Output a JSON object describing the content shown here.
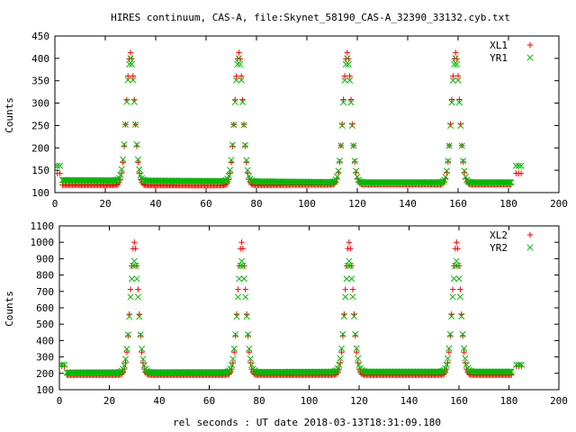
{
  "title": "HIRES continuum, CAS-A, file:Skynet_58190_CAS-A_32390_33132.cyb.txt",
  "xlabel": "rel seconds : UT date 2018-03-13T18:31:09.180",
  "colors": {
    "xl": "#ff0000",
    "yr": "#00bb00",
    "axis": "#000000"
  },
  "chart_data": [
    {
      "type": "scatter",
      "ylabel": "Counts",
      "xlim": [
        0,
        200
      ],
      "ylim": [
        100,
        450
      ],
      "xticks": [
        0,
        20,
        40,
        60,
        80,
        100,
        120,
        140,
        160,
        180,
        200
      ],
      "yticks": [
        100,
        150,
        200,
        250,
        300,
        350,
        400,
        450
      ],
      "legend_position": "top-right",
      "series": [
        {
          "name": "XL1",
          "marker": "plus",
          "color": "#ff0000",
          "cal_points": [
            [
              0,
              143
            ],
            [
              1,
              143
            ],
            [
              2,
              143
            ],
            [
              183,
              143
            ],
            [
              184,
              143
            ],
            [
              185,
              143
            ]
          ],
          "baseline": [
            [
              3,
              117
            ],
            [
              60,
              116
            ],
            [
              120,
              118
            ],
            [
              181,
              118
            ],
            [
              188,
              118
            ]
          ],
          "peaks": [
            [
              30,
              413,
              1.6
            ],
            [
              73,
              413,
              1.6
            ],
            [
              116,
              413,
              1.6
            ],
            [
              159,
              413,
              1.6
            ]
          ],
          "range": [
            3,
            181
          ],
          "step": 0.5
        },
        {
          "name": "YR1",
          "marker": "cross",
          "color": "#00bb00",
          "cal_points": [
            [
              0,
              160
            ],
            [
              1,
              160
            ],
            [
              2,
              160
            ],
            [
              183,
              160
            ],
            [
              184,
              160
            ],
            [
              185,
              160
            ]
          ],
          "baseline": [
            [
              3,
              128
            ],
            [
              60,
              126
            ],
            [
              120,
              123
            ],
            [
              181,
              123
            ],
            [
              188,
              123
            ]
          ],
          "peaks": [
            [
              30,
              400,
              1.6
            ],
            [
              73,
              400,
              1.6
            ],
            [
              116,
              400,
              1.6
            ],
            [
              159,
              400,
              1.6
            ]
          ],
          "range": [
            3,
            181
          ],
          "step": 0.5
        }
      ]
    },
    {
      "type": "scatter",
      "ylabel": "Counts",
      "xlim": [
        0,
        200
      ],
      "ylim": [
        100,
        1100
      ],
      "xticks": [
        0,
        20,
        40,
        60,
        80,
        100,
        120,
        140,
        160,
        180,
        200
      ],
      "yticks": [
        100,
        200,
        300,
        400,
        500,
        600,
        700,
        800,
        900,
        1000,
        1100
      ],
      "legend_position": "top-right",
      "series": [
        {
          "name": "XL2",
          "marker": "plus",
          "color": "#ff0000",
          "cal_points": [
            [
              0,
              243
            ],
            [
              1,
              243
            ],
            [
              2,
              243
            ],
            [
              183,
              243
            ],
            [
              184,
              243
            ],
            [
              185,
              243
            ]
          ],
          "baseline": [
            [
              3,
              190
            ],
            [
              60,
              190
            ],
            [
              120,
              190
            ],
            [
              181,
              190
            ],
            [
              188,
              190
            ]
          ],
          "peaks": [
            [
              30,
              1000,
              1.6
            ],
            [
              73,
              1000,
              1.6
            ],
            [
              116,
              1000,
              1.6
            ],
            [
              159,
              1000,
              1.6
            ]
          ],
          "range": [
            3,
            181
          ],
          "step": 0.5
        },
        {
          "name": "YR2",
          "marker": "cross",
          "color": "#00bb00",
          "cal_points": [
            [
              0,
              252
            ],
            [
              1,
              252
            ],
            [
              2,
              252
            ],
            [
              183,
              252
            ],
            [
              184,
              252
            ],
            [
              185,
              252
            ]
          ],
          "baseline": [
            [
              3,
              205
            ],
            [
              60,
              207
            ],
            [
              120,
              210
            ],
            [
              181,
              210
            ],
            [
              188,
              210
            ]
          ],
          "peaks": [
            [
              30,
              885,
              1.7
            ],
            [
              73,
              885,
              1.7
            ],
            [
              116,
              885,
              1.7
            ],
            [
              159,
              885,
              1.7
            ]
          ],
          "range": [
            3,
            181
          ],
          "step": 0.5
        }
      ]
    }
  ]
}
